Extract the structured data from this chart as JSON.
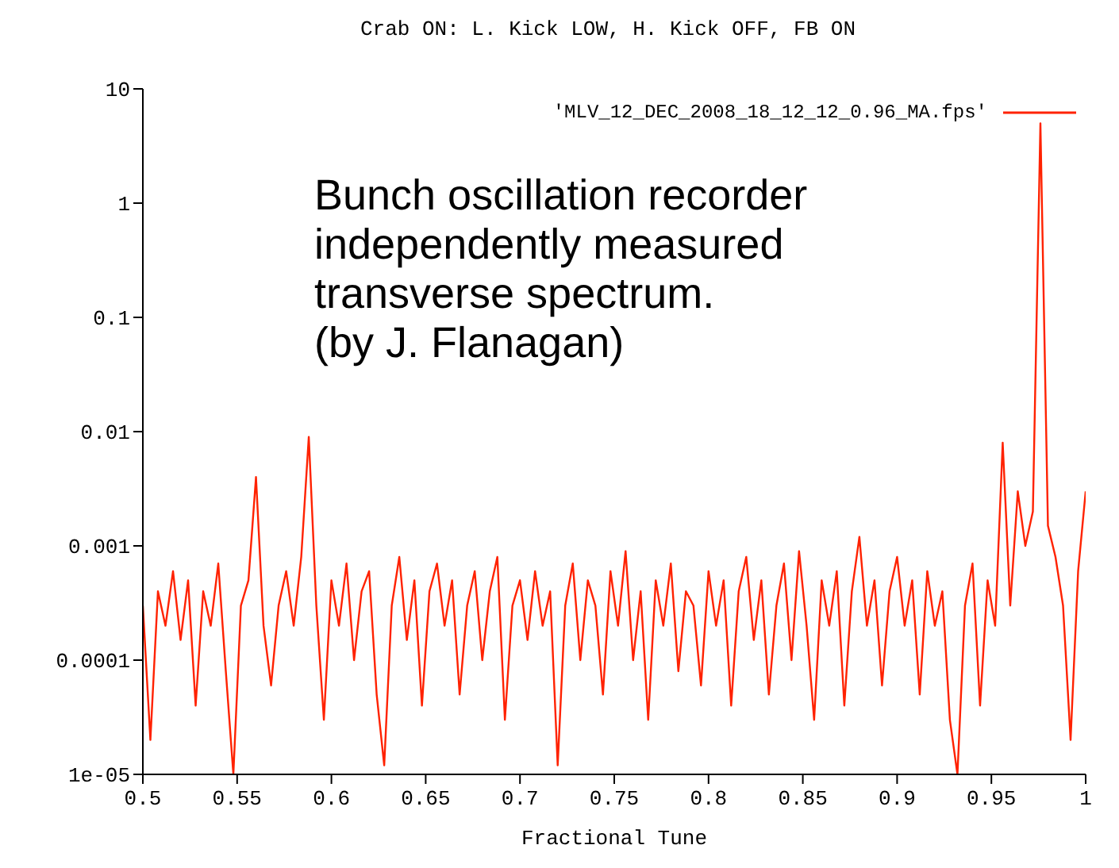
{
  "chart_data": {
    "type": "line",
    "title": "Crab ON:  L. Kick LOW, H. Kick OFF, FB ON",
    "xlabel": "Fractional Tune",
    "annotations": [
      "Bunch oscillation recorder\nindependently measured\ntransverse spectrum.\n(by J. Flanagan)"
    ],
    "x": [
      0.5,
      0.504,
      0.508,
      0.512,
      0.516,
      0.52,
      0.524,
      0.528,
      0.532,
      0.536,
      0.54,
      0.544,
      0.548,
      0.552,
      0.556,
      0.56,
      0.564,
      0.568,
      0.572,
      0.576,
      0.58,
      0.584,
      0.588,
      0.592,
      0.596,
      0.6,
      0.604,
      0.608,
      0.612,
      0.616,
      0.62,
      0.624,
      0.628,
      0.632,
      0.636,
      0.64,
      0.644,
      0.648,
      0.652,
      0.656,
      0.66,
      0.664,
      0.668,
      0.672,
      0.676,
      0.68,
      0.684,
      0.688,
      0.692,
      0.696,
      0.7,
      0.704,
      0.708,
      0.712,
      0.716,
      0.72,
      0.724,
      0.728,
      0.732,
      0.736,
      0.74,
      0.744,
      0.748,
      0.752,
      0.756,
      0.76,
      0.764,
      0.768,
      0.772,
      0.776,
      0.78,
      0.784,
      0.788,
      0.792,
      0.796,
      0.8,
      0.804,
      0.808,
      0.812,
      0.816,
      0.82,
      0.824,
      0.828,
      0.832,
      0.836,
      0.84,
      0.844,
      0.848,
      0.852,
      0.856,
      0.86,
      0.864,
      0.868,
      0.872,
      0.876,
      0.88,
      0.884,
      0.888,
      0.892,
      0.896,
      0.9,
      0.904,
      0.908,
      0.912,
      0.916,
      0.92,
      0.924,
      0.928,
      0.932,
      0.936,
      0.94,
      0.944,
      0.948,
      0.952,
      0.956,
      0.96,
      0.964,
      0.968,
      0.972,
      0.976,
      0.98,
      0.984,
      0.988,
      0.992,
      0.996,
      1.0
    ],
    "series": [
      {
        "name": "'MLV_12_DEC_2008_18_12_12_0.96_MA.fps'",
        "color": "#ff2200",
        "values": [
          0.0003,
          2e-05,
          0.0004,
          0.0002,
          0.0006,
          0.00015,
          0.0005,
          4e-05,
          0.0004,
          0.0002,
          0.0007,
          8e-05,
          1e-05,
          0.0003,
          0.0005,
          0.004,
          0.0002,
          6e-05,
          0.0003,
          0.0006,
          0.0002,
          0.0008,
          0.009,
          0.0003,
          3e-05,
          0.0005,
          0.0002,
          0.0007,
          0.0001,
          0.0004,
          0.0006,
          5e-05,
          1.2e-05,
          0.0003,
          0.0008,
          0.00015,
          0.0005,
          4e-05,
          0.0004,
          0.0007,
          0.0002,
          0.0005,
          5e-05,
          0.0003,
          0.0006,
          0.0001,
          0.0004,
          0.0008,
          3e-05,
          0.0003,
          0.0005,
          0.00015,
          0.0006,
          0.0002,
          0.0004,
          1.2e-05,
          0.0003,
          0.0007,
          0.0001,
          0.0005,
          0.0003,
          5e-05,
          0.0006,
          0.0002,
          0.0009,
          0.0001,
          0.0004,
          3e-05,
          0.0005,
          0.0002,
          0.0007,
          8e-05,
          0.0004,
          0.0003,
          6e-05,
          0.0006,
          0.0002,
          0.0005,
          4e-05,
          0.0004,
          0.0008,
          0.00015,
          0.0005,
          5e-05,
          0.0003,
          0.0007,
          0.0001,
          0.0009,
          0.0002,
          3e-05,
          0.0005,
          0.0002,
          0.0006,
          4e-05,
          0.0004,
          0.0012,
          0.0002,
          0.0005,
          6e-05,
          0.0004,
          0.0008,
          0.0002,
          0.0005,
          5e-05,
          0.0006,
          0.0002,
          0.0004,
          3e-05,
          1e-05,
          0.0003,
          0.0007,
          4e-05,
          0.0005,
          0.0002,
          0.008,
          0.0003,
          0.003,
          0.001,
          0.002,
          5,
          0.0015,
          0.0008,
          0.0003,
          2e-05,
          0.0006,
          0.003
        ]
      }
    ],
    "xlim": [
      0.5,
      1
    ],
    "xticks": [
      0.5,
      0.55,
      0.6,
      0.65,
      0.7,
      0.75,
      0.8,
      0.85,
      0.9,
      0.95,
      1
    ],
    "ylim": [
      1e-05,
      10
    ],
    "yticks": [
      {
        "value": 1e-05,
        "label": "1e-05"
      },
      0.0001,
      0.001,
      0.01,
      0.1,
      1,
      10
    ],
    "log": "y",
    "legend": "top right",
    "marker": "none",
    "line_style": "solid"
  }
}
